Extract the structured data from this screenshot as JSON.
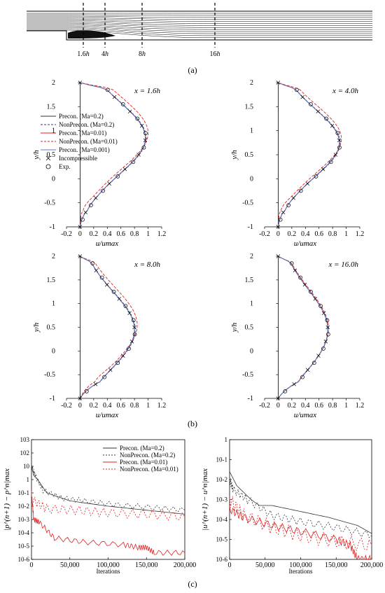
{
  "figure": {
    "panel_a": "(a)",
    "panel_b": "(b)",
    "panel_c": "(c)",
    "stations": [
      {
        "label": "1.6",
        "unit": "h"
      },
      {
        "label": "4",
        "unit": "h"
      },
      {
        "label": "8",
        "unit": "h"
      },
      {
        "label": "16",
        "unit": "h"
      }
    ]
  },
  "legend_b": [
    {
      "label": "Precon. (Ma=0.2)",
      "color": "#333333",
      "style": "solid"
    },
    {
      "label": "NonPrecon. (Ma=0.2)",
      "color": "#3a3a7a",
      "style": "dash"
    },
    {
      "label": "Precon. (Ma=0.01)",
      "color": "#e02020",
      "style": "solid"
    },
    {
      "label": "NonPrecon. (Ma=0.01)",
      "color": "#e02020",
      "style": "dash"
    },
    {
      "label": "Precon. (Ma=0.001)",
      "color": "#4f7fd0",
      "style": "solid"
    },
    {
      "label": "Incompressible",
      "marker": "x"
    },
    {
      "label": "Exp.",
      "marker": "o"
    }
  ],
  "legend_c": [
    {
      "label": "Precon. (Ma=0.2)",
      "color": "#333333",
      "style": "solid"
    },
    {
      "label": "NonPrecon. (Ma=0.2)",
      "color": "#333333",
      "style": "dot"
    },
    {
      "label": "Precon. (Ma=0.01)",
      "color": "#e02020",
      "style": "solid"
    },
    {
      "label": "NonPrecon. (Ma=0.01)",
      "color": "#e02020",
      "style": "dot"
    }
  ],
  "chart_data": [
    {
      "type": "line",
      "id": "p1",
      "title": "x = 1.6h",
      "xlabel": "u/umax",
      "ylabel": "y/h",
      "xlim": [
        -0.2,
        1.2
      ],
      "ylim": [
        -1,
        2
      ],
      "xticks": [
        "-0.2",
        "0",
        "0.2",
        "0.4",
        "0.6",
        "0.8",
        "1",
        "1.2"
      ],
      "yticks": [
        "-1",
        "-0.5",
        "0",
        "0.5",
        "1",
        "1.5",
        "2"
      ],
      "umax": 0.96,
      "yc": 0.85,
      "sig": 0.75,
      "series": [
        {
          "name": "Precon. (Ma=0.2)",
          "du": 0,
          "dy": 0
        },
        {
          "name": "NonPrecon. (Ma=0.2)",
          "du": 0.01,
          "dy": 0
        },
        {
          "name": "Precon. (Ma=0.01)",
          "du": 0,
          "dy": 0
        },
        {
          "name": "NonPrecon. (Ma=0.01)",
          "du": 0.04,
          "dy": 0.1
        },
        {
          "name": "Precon. (Ma=0.001)",
          "du": 0,
          "dy": 0
        }
      ]
    },
    {
      "type": "line",
      "id": "p2",
      "title": "x = 4.0h",
      "xlabel": "u/umax",
      "ylabel": "y/h",
      "xlim": [
        -0.2,
        1.2
      ],
      "ylim": [
        -1,
        2
      ],
      "xticks": [
        "-0.2",
        "0",
        "0.2",
        "0.4",
        "0.6",
        "0.8",
        "1",
        "1.2"
      ],
      "yticks": [
        "-1",
        "-0.5",
        "0",
        "0.5",
        "1",
        "1.5",
        "2"
      ],
      "umax": 0.9,
      "yc": 0.75,
      "sig": 0.7,
      "series": [
        {
          "name": "Precon. (Ma=0.2)",
          "du": 0,
          "dy": 0
        },
        {
          "name": "NonPrecon. (Ma=0.2)",
          "du": 0.01,
          "dy": 0
        },
        {
          "name": "Precon. (Ma=0.01)",
          "du": 0,
          "dy": 0
        },
        {
          "name": "NonPrecon. (Ma=0.01)",
          "du": 0.03,
          "dy": 0.08
        },
        {
          "name": "Precon. (Ma=0.001)",
          "du": 0,
          "dy": 0
        }
      ]
    },
    {
      "type": "line",
      "id": "p3",
      "title": "x = 8.0h",
      "xlabel": "u/umax",
      "ylabel": "y/h",
      "xlim": [
        -0.2,
        1.2
      ],
      "ylim": [
        -1,
        2
      ],
      "xticks": [
        "-0.2",
        "0",
        "0.2",
        "0.4",
        "0.6",
        "0.8",
        "1",
        "1.2"
      ],
      "yticks": [
        "-1",
        "-0.5",
        "0",
        "0.5",
        "1",
        "1.5",
        "2"
      ],
      "umax": 0.8,
      "yc": 0.45,
      "sig": 0.8,
      "series": [
        {
          "name": "Precon. (Ma=0.2)",
          "du": 0,
          "dy": 0
        },
        {
          "name": "NonPrecon. (Ma=0.2)",
          "du": 0.01,
          "dy": 0
        },
        {
          "name": "Precon. (Ma=0.01)",
          "du": 0,
          "dy": 0
        },
        {
          "name": "NonPrecon. (Ma=0.01)",
          "du": 0.04,
          "dy": 0.1
        },
        {
          "name": "Precon. (Ma=0.001)",
          "du": 0,
          "dy": 0
        }
      ]
    },
    {
      "type": "line",
      "id": "p4",
      "title": "x = 16.0h",
      "xlabel": "u/umax",
      "ylabel": "y/h",
      "xlim": [
        -0.2,
        1.2
      ],
      "ylim": [
        -1,
        2
      ],
      "xticks": [
        "-0.2",
        "0",
        "0.2",
        "0.4",
        "0.6",
        "0.8",
        "1",
        "1.2"
      ],
      "yticks": [
        "-1",
        "-0.5",
        "0",
        "0.5",
        "1",
        "1.5",
        "2"
      ],
      "umax": 0.73,
      "yc": 0.45,
      "sig": 0.85,
      "series": [
        {
          "name": "Precon. (Ma=0.2)",
          "du": 0,
          "dy": 0
        },
        {
          "name": "NonPrecon. (Ma=0.2)",
          "du": 0.005,
          "dy": 0
        },
        {
          "name": "Precon. (Ma=0.01)",
          "du": 0,
          "dy": 0
        },
        {
          "name": "NonPrecon. (Ma=0.01)",
          "du": 0.01,
          "dy": 0.02
        },
        {
          "name": "Precon. (Ma=0.001)",
          "du": 0,
          "dy": 0
        }
      ]
    },
    {
      "type": "line",
      "id": "c1",
      "log_y": true,
      "ylabel": "|p^(n+1) − p^n|max",
      "xlabel": "Iterations",
      "xlim": [
        0,
        200000
      ],
      "ylim_exp": [
        -6,
        3
      ],
      "xticks": [
        "0",
        "50,000",
        "100,000",
        "150,000",
        "200,000"
      ],
      "yticks": [
        "10-6",
        "10-5",
        "10-4",
        "10-3",
        "10-2",
        "10-1",
        "1",
        "10",
        "102",
        "103"
      ],
      "series": [
        {
          "name": "Precon. (Ma=0.2)",
          "points": [
            [
              0,
              1
            ],
            [
              3000,
              0.3
            ],
            [
              8000,
              0
            ],
            [
              20000,
              -1
            ],
            [
              50000,
              -1.6
            ],
            [
              100000,
              -2
            ],
            [
              150000,
              -2.3
            ],
            [
              200000,
              -2.6
            ]
          ]
        },
        {
          "name": "NonPrecon. (Ma=0.2)",
          "points": [
            [
              0,
              1
            ],
            [
              5000,
              0.3
            ],
            [
              15000,
              -0.8
            ],
            [
              40000,
              -1.4
            ],
            [
              70000,
              -1.6
            ],
            [
              110000,
              -1.9
            ],
            [
              160000,
              -2.1
            ],
            [
              200000,
              -2.3
            ]
          ]
        },
        {
          "name": "Precon. (Ma=0.01)",
          "points": [
            [
              0,
              -1
            ],
            [
              3000,
              -3
            ],
            [
              10000,
              -3.2
            ],
            [
              30000,
              -4.4
            ],
            [
              70000,
              -4.7
            ],
            [
              120000,
              -4.9
            ],
            [
              140000,
              -5.1
            ],
            [
              150000,
              -5.1
            ],
            [
              160000,
              -5.5
            ],
            [
              200000,
              -5.5
            ]
          ]
        },
        {
          "name": "NonPrecon. (Ma=0.01)",
          "points": [
            [
              0,
              -1.5
            ],
            [
              20000,
              -2.2
            ],
            [
              60000,
              -2.3
            ],
            [
              100000,
              -2.5
            ],
            [
              150000,
              -2.6
            ],
            [
              200000,
              -2.8
            ]
          ]
        }
      ]
    },
    {
      "type": "line",
      "id": "c2",
      "log_y": true,
      "ylabel": "|u^(n+1) − u^n|max",
      "xlabel": "Iterations",
      "xlim": [
        0,
        200000
      ],
      "ylim_exp": [
        -6,
        0
      ],
      "xticks": [
        "0",
        "50,000",
        "100,000",
        "150,000",
        "200,000"
      ],
      "yticks": [
        "10-6",
        "10-5",
        "10-4",
        "10-3",
        "10-2",
        "10-1",
        "1"
      ],
      "series": [
        {
          "name": "Precon. (Ma=0.2)",
          "points": [
            [
              0,
              -1.6
            ],
            [
              10000,
              -2.3
            ],
            [
              30000,
              -3
            ],
            [
              42000,
              -3.3
            ],
            [
              60000,
              -3.3
            ],
            [
              100000,
              -3.6
            ],
            [
              140000,
              -3.9
            ],
            [
              180000,
              -4.3
            ],
            [
              200000,
              -4.7
            ]
          ]
        },
        {
          "name": "NonPrecon. (Ma=0.2)",
          "points": [
            [
              0,
              -2
            ],
            [
              5000,
              -2.5
            ],
            [
              25000,
              -3
            ],
            [
              60000,
              -3.8
            ],
            [
              100000,
              -4.1
            ],
            [
              150000,
              -4.4
            ],
            [
              200000,
              -4.8
            ]
          ]
        },
        {
          "name": "Precon. (Ma=0.01)",
          "points": [
            [
              0,
              -3.5
            ],
            [
              20000,
              -3.9
            ],
            [
              60000,
              -4.3
            ],
            [
              100000,
              -4.6
            ],
            [
              150000,
              -5
            ],
            [
              170000,
              -5.3
            ],
            [
              180000,
              -6
            ],
            [
              200000,
              -6
            ]
          ]
        },
        {
          "name": "NonPrecon. (Ma=0.01)",
          "points": [
            [
              0,
              -3
            ],
            [
              20000,
              -3.8
            ],
            [
              60000,
              -4.4
            ],
            [
              100000,
              -4.8
            ],
            [
              150000,
              -5.1
            ],
            [
              200000,
              -5.3
            ]
          ]
        }
      ]
    }
  ]
}
